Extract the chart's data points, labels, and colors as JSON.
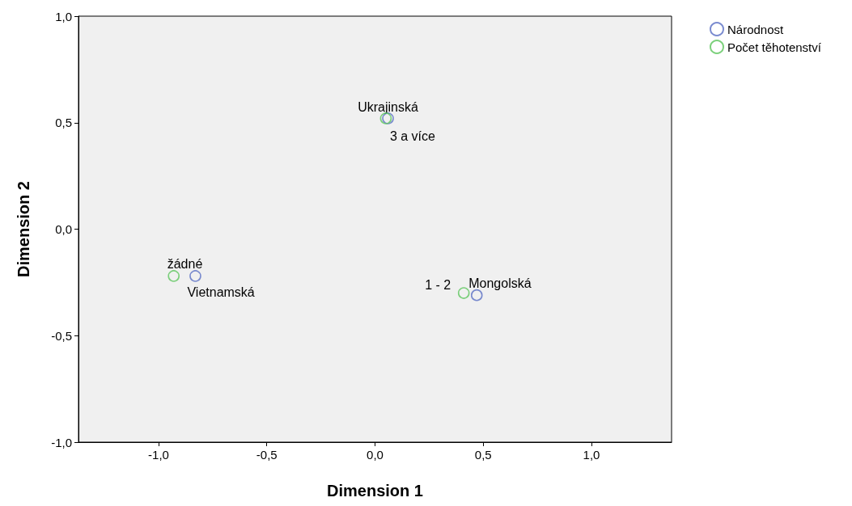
{
  "chart_data": {
    "type": "scatter",
    "xlabel": "Dimension 1",
    "ylabel": "Dimension 2",
    "xlim": [
      -1.37,
      1.37
    ],
    "ylim": [
      -1,
      1
    ],
    "xticks": [
      {
        "value": -1,
        "label": "-1,0"
      },
      {
        "value": -0.5,
        "label": "-0,5"
      },
      {
        "value": 0,
        "label": "0,0"
      },
      {
        "value": 0.5,
        "label": "0,5"
      },
      {
        "value": 1,
        "label": "1,0"
      }
    ],
    "yticks": [
      {
        "value": -1,
        "label": "-1,0"
      },
      {
        "value": -0.5,
        "label": "-0,5"
      },
      {
        "value": 0,
        "label": "0,0"
      },
      {
        "value": 0.5,
        "label": "0,5"
      },
      {
        "value": 1,
        "label": "1,0"
      }
    ],
    "grid": false,
    "legend": "top right",
    "marker": "circle",
    "series": [
      {
        "name": "Národnost",
        "color": "#5a6fc4",
        "x": [
          0.06,
          -0.83,
          0.47
        ],
        "values": [
          0.52,
          -0.22,
          -0.31
        ]
      },
      {
        "name": "Počet těhotenství",
        "color": "#5cc65c",
        "x": [
          0.05,
          -0.93,
          0.41
        ],
        "values": [
          0.52,
          -0.22,
          -0.3
        ]
      }
    ],
    "annotations": [
      {
        "text": "Ukrajinská",
        "x": 0.06,
        "y": 0.52
      },
      {
        "text": "Vietnamská",
        "x": -0.83,
        "y": -0.22
      },
      {
        "text": "Mongolská",
        "x": 0.47,
        "y": -0.31
      },
      {
        "text": "3 a více",
        "x": 0.05,
        "y": 0.52
      },
      {
        "text": "žádné",
        "x": -0.93,
        "y": -0.22
      },
      {
        "text": "1 - 2",
        "x": 0.41,
        "y": -0.3
      }
    ]
  }
}
